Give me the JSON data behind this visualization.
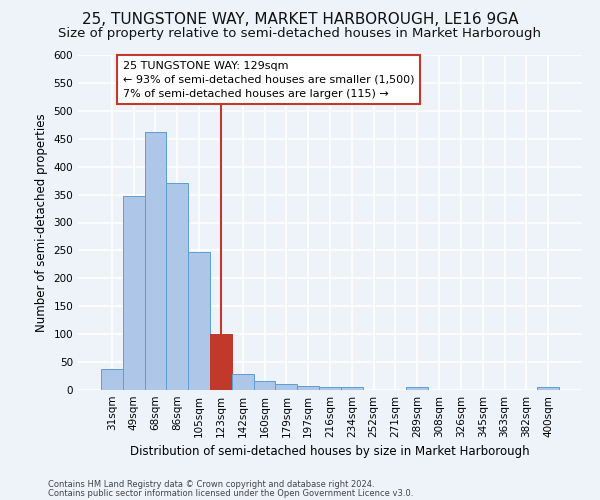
{
  "title": "25, TUNGSTONE WAY, MARKET HARBOROUGH, LE16 9GA",
  "subtitle": "Size of property relative to semi-detached houses in Market Harborough",
  "xlabel": "Distribution of semi-detached houses by size in Market Harborough",
  "ylabel": "Number of semi-detached properties",
  "footnote1": "Contains HM Land Registry data © Crown copyright and database right 2024.",
  "footnote2": "Contains public sector information licensed under the Open Government Licence v3.0.",
  "bar_labels": [
    "31sqm",
    "49sqm",
    "68sqm",
    "86sqm",
    "105sqm",
    "123sqm",
    "142sqm",
    "160sqm",
    "179sqm",
    "197sqm",
    "216sqm",
    "234sqm",
    "252sqm",
    "271sqm",
    "289sqm",
    "308sqm",
    "326sqm",
    "345sqm",
    "363sqm",
    "382sqm",
    "400sqm"
  ],
  "bar_values": [
    38,
    348,
    462,
    370,
    247,
    100,
    29,
    16,
    11,
    8,
    5,
    5,
    0,
    0,
    5,
    0,
    0,
    0,
    0,
    0,
    5
  ],
  "bar_color": "#aec6e8",
  "bar_edgecolor": "#5a9fd4",
  "highlight_bar_index": 5,
  "highlight_bar_color": "#c0392b",
  "highlight_bar_edgecolor": "#c0392b",
  "vline_x": 5,
  "vline_color": "#c0392b",
  "annotation_line1": "25 TUNGSTONE WAY: 129sqm",
  "annotation_line2": "← 93% of semi-detached houses are smaller (1,500)",
  "annotation_line3": "7% of semi-detached houses are larger (115) →",
  "annotation_box_edgecolor": "#c0392b",
  "annotation_box_facecolor": "#ffffff",
  "ylim": [
    0,
    600
  ],
  "yticks": [
    0,
    50,
    100,
    150,
    200,
    250,
    300,
    350,
    400,
    450,
    500,
    550,
    600
  ],
  "background_color": "#eef2f9",
  "plot_background_color": "#eef2f9",
  "grid_color": "#ffffff",
  "title_fontsize": 11,
  "subtitle_fontsize": 9.5,
  "axis_label_fontsize": 8.5,
  "tick_fontsize": 7.5,
  "annotation_fontsize": 8
}
